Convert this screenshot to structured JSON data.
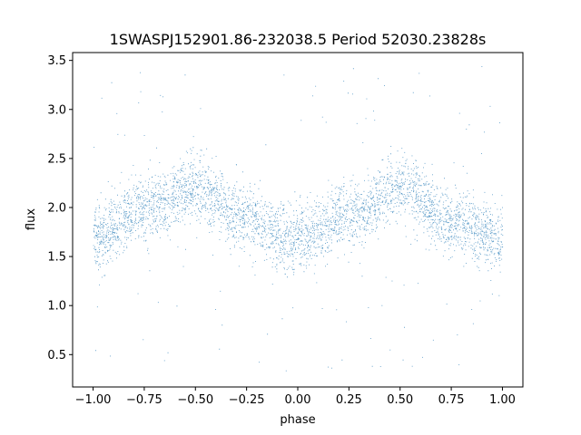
{
  "chart_data": {
    "type": "scatter",
    "title": "1SWASPJ152901.86-232038.5 Period 52030.23828s",
    "xlabel": "phase",
    "ylabel": "flux",
    "xlim": [
      -1.1,
      1.1
    ],
    "ylim": [
      0.17,
      3.58
    ],
    "xticks": [
      -1.0,
      -0.75,
      -0.5,
      -0.25,
      0.0,
      0.25,
      0.5,
      0.75,
      1.0
    ],
    "xtick_labels": [
      "−1.00",
      "−0.75",
      "−0.50",
      "−0.25",
      "0.00",
      "0.25",
      "0.50",
      "0.75",
      "1.00"
    ],
    "yticks": [
      0.5,
      1.0,
      1.5,
      2.0,
      2.5,
      3.0,
      3.5
    ],
    "ytick_labels": [
      "0.5",
      "1.0",
      "1.5",
      "2.0",
      "2.5",
      "3.0",
      "3.5"
    ],
    "grid": false,
    "legend": "none",
    "point_color": "#1f77b4",
    "series": [
      {
        "phase_range": [
          -1.0,
          1.0
        ],
        "mean_curve": {
          "phase": [
            -1.0,
            -0.75,
            -0.5,
            -0.25,
            0.0,
            0.25,
            0.5,
            0.75,
            1.0
          ],
          "flux": [
            1.68,
            2.0,
            2.2,
            1.88,
            1.65,
            1.95,
            2.2,
            1.85,
            1.68
          ]
        },
        "flux_scatter": 0.16,
        "outlier_flux_range": [
          0.33,
          3.45
        ],
        "approx_point_count": 30000
      }
    ]
  }
}
